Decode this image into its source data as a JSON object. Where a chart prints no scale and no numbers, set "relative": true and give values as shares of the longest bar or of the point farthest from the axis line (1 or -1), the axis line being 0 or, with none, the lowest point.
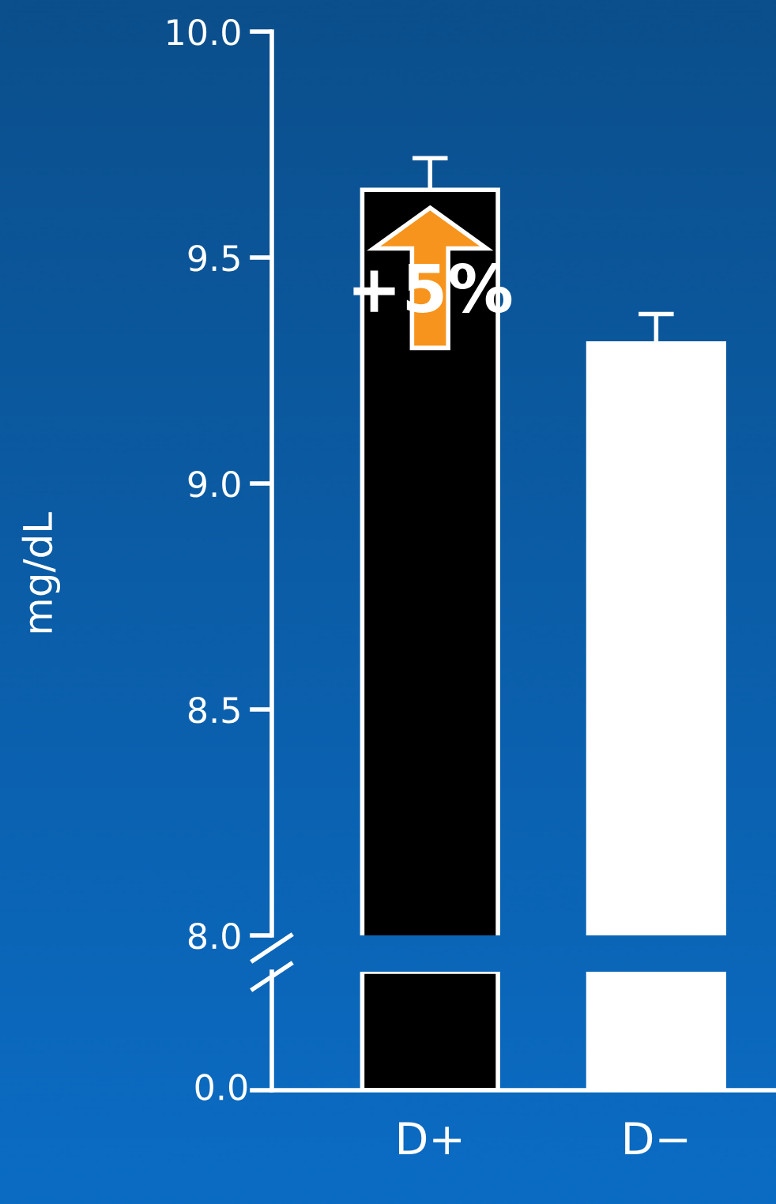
{
  "chart_data": [
    {
      "type": "bar",
      "ylabel": "mg/dL",
      "categories": [
        null,
        null
      ],
      "colors": [
        "#000000",
        "#ffffff"
      ],
      "values": [
        9.65,
        9.31
      ],
      "errors": [
        0.07,
        0.065
      ],
      "ylim": [
        8.0,
        10.0
      ],
      "yticks": [
        {
          "value": 8.0,
          "label": "8.0"
        },
        {
          "value": 8.5,
          "label": "8.5"
        },
        {
          "value": 9.0,
          "label": "9.0"
        },
        {
          "value": 9.5,
          "label": "9.5"
        },
        {
          "value": 10.0,
          "label": "10.0"
        }
      ],
      "tick_labels": "y",
      "grid": false,
      "annotations": [
        "+5%"
      ]
    },
    {
      "type": "bar",
      "categories": [
        "D+",
        "D−"
      ],
      "colors": [
        "#000000",
        "#ffffff"
      ],
      "values": [
        1,
        1
      ],
      "relative": true,
      "annotations": [
        "0.0"
      ],
      "grid": false
    }
  ]
}
